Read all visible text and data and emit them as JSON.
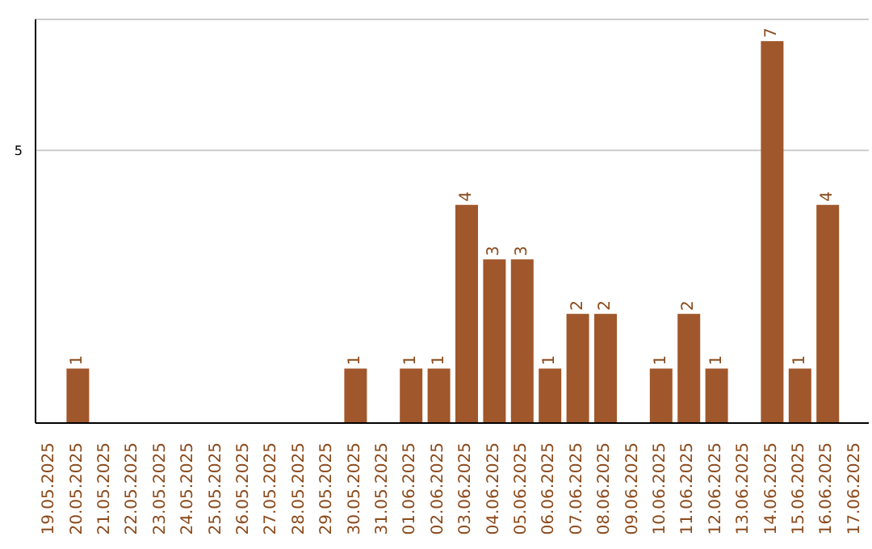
{
  "chart_data": {
    "type": "bar",
    "categories": [
      "19.05.2025",
      "20.05.2025",
      "21.05.2025",
      "22.05.2025",
      "23.05.2025",
      "24.05.2025",
      "25.05.2025",
      "26.05.2025",
      "27.05.2025",
      "28.05.2025",
      "29.05.2025",
      "30.05.2025",
      "31.05.2025",
      "01.06.2025",
      "02.06.2025",
      "03.06.2025",
      "04.06.2025",
      "05.06.2025",
      "06.06.2025",
      "07.06.2025",
      "08.06.2025",
      "09.06.2025",
      "10.06.2025",
      "11.06.2025",
      "12.06.2025",
      "13.06.2025",
      "14.06.2025",
      "15.06.2025",
      "16.06.2025",
      "17.06.2025"
    ],
    "values": [
      0,
      1,
      0,
      0,
      0,
      0,
      0,
      0,
      0,
      0,
      0,
      1,
      0,
      1,
      1,
      4,
      3,
      3,
      1,
      2,
      2,
      0,
      1,
      2,
      1,
      0,
      7,
      1,
      4,
      0
    ],
    "value_labels": [
      null,
      "1",
      null,
      null,
      null,
      null,
      null,
      null,
      null,
      null,
      null,
      "1",
      null,
      "1",
      "1",
      "4",
      "3",
      "3",
      "1",
      "2",
      "2",
      null,
      "1",
      "2",
      "1",
      null,
      "7",
      "1",
      "4",
      null
    ],
    "color": "#a0572b",
    "ylim": [
      0,
      7.4
    ],
    "yticks": [
      5
    ],
    "grid": "y"
  }
}
